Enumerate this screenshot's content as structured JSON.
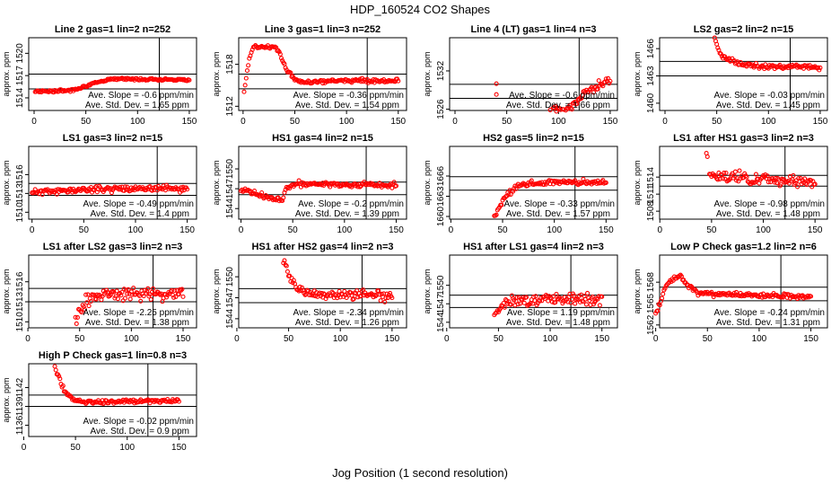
{
  "page": {
    "title": "HDP_160524  CO2 Shapes",
    "xlabel": "Jog Position (1 second resolution)",
    "ylabel": "approx. ppm",
    "point_color": "#ff0000"
  },
  "chart_data": [
    {
      "type": "scatter",
      "title": "Line 2 gas=1 lin=2 n=252",
      "xlim": [
        0,
        150
      ],
      "xticks": [
        0,
        50,
        100,
        150
      ],
      "ylim": [
        1512.3,
        1522.1
      ],
      "yticks": [
        1514,
        1517,
        1520
      ],
      "hlines": [
        1517.2,
        1515.2
      ],
      "vline": 121,
      "slope": "Ave. Slope = -0.6 ppm/min",
      "std": "Ave. Std. Dev. = 1.65 ppm",
      "start": 0,
      "gen": [
        1,
        1,
        [
          [
            0,
            1514.9
          ],
          [
            10,
            1514.9
          ],
          [
            20,
            1514.9
          ],
          [
            35,
            1515.0
          ],
          [
            45,
            1515.4
          ],
          [
            60,
            1516.0
          ],
          [
            75,
            1516.6
          ],
          [
            100,
            1516.5
          ],
          [
            125,
            1516.5
          ],
          [
            150,
            1516.4
          ]
        ],
        0.12
      ]
    },
    {
      "type": "scatter",
      "title": "Line 3 gas=1 lin=3 n=252",
      "xlim": [
        0,
        150
      ],
      "xticks": [
        0,
        50,
        100,
        150
      ],
      "ylim": [
        1511.4,
        1521.8
      ],
      "yticks": [
        1512,
        1518
      ],
      "hlines": [
        1516.6,
        1514.5
      ],
      "vline": 120,
      "slope": "Ave. Slope = -0.36 ppm/min",
      "std": "Ave. Std. Dev. = 1.54 ppm",
      "start": 1,
      "gen": [
        1,
        1,
        [
          [
            1,
            1514
          ],
          [
            3,
            1516
          ],
          [
            6,
            1519
          ],
          [
            10,
            1520.4
          ],
          [
            30,
            1520.5
          ],
          [
            36,
            1519.3
          ],
          [
            42,
            1517.2
          ],
          [
            50,
            1515.9
          ],
          [
            60,
            1515.4
          ],
          [
            80,
            1515.5
          ],
          [
            110,
            1515.7
          ],
          [
            150,
            1515.6
          ]
        ],
        0.2
      ]
    },
    {
      "type": "scatter",
      "title": "Line 4 (LT) gas=1 lin=4 n=3",
      "xlim": [
        0,
        150
      ],
      "xticks": [
        0,
        50,
        100,
        150
      ],
      "ylim": [
        1525.8,
        1537.2
      ],
      "yticks": [
        1526,
        1532
      ],
      "hlines": [
        1529.9,
        1527.7
      ],
      "vline": 120,
      "slope": "Ave. Slope = -0.6 ppm/min",
      "std": "Ave. Std. Dev. = 1.66 ppm",
      "start": 0,
      "pts": [
        [
          40,
          1530.0
        ],
        [
          40,
          1528.3
        ]
      ],
      "gen": [
        92,
        1,
        [
          [
            92,
            1525.8
          ],
          [
            108,
            1526.0
          ],
          [
            120,
            1527.7
          ],
          [
            130,
            1529.0
          ],
          [
            140,
            1529.8
          ],
          [
            150,
            1530.8
          ]
        ],
        0.55
      ]
    },
    {
      "type": "scatter",
      "title": "LS2 gas=2 lin=2 n=15",
      "xlim": [
        0,
        150
      ],
      "xticks": [
        0,
        50,
        100,
        150
      ],
      "ylim": [
        1459.2,
        1467.2
      ],
      "yticks": [
        1460,
        1463,
        1466
      ],
      "hlines": [
        1464.6,
        1463.0
      ],
      "vline": 121,
      "slope": "Ave. Slope = -0.03 ppm/min",
      "std": "Ave. Std. Dev. = 1.45 ppm",
      "start": 0,
      "gen": [
        48,
        1,
        [
          [
            48,
            1467.2
          ],
          [
            50,
            1466.4
          ],
          [
            55,
            1465.2
          ],
          [
            62,
            1464.7
          ],
          [
            75,
            1464.3
          ],
          [
            100,
            1464.0
          ],
          [
            125,
            1464.0
          ],
          [
            150,
            1463.9
          ]
        ],
        0.2
      ]
    },
    {
      "type": "scatter",
      "title": "LS1 gas=3 lin=2 n=15",
      "xlim": [
        0,
        150
      ],
      "xticks": [
        0,
        50,
        100,
        150
      ],
      "ylim": [
        1508.9,
        1520.5
      ],
      "yticks": [
        1510,
        1513,
        1516
      ],
      "hlines": [
        1514.6,
        1512.7
      ],
      "vline": 121,
      "slope": "Ave. Slope = -0.49 ppm/min",
      "std": "Ave. Std. Dev. = 1.4 ppm",
      "start": 2,
      "gen": [
        0,
        1,
        [
          [
            0,
            1513.2
          ],
          [
            30,
            1513.4
          ],
          [
            60,
            1513.7
          ],
          [
            100,
            1513.8
          ],
          [
            150,
            1513.7
          ]
        ],
        0.35
      ]
    },
    {
      "type": "scatter",
      "title": "HS1 gas=4 lin=2 n=15",
      "xlim": [
        0,
        150
      ],
      "xticks": [
        0,
        50,
        100,
        150
      ],
      "ylim": [
        1542.4,
        1553.4
      ],
      "yticks": [
        1544,
        1547,
        1550
      ],
      "hlines": [
        1548.0,
        1546.1
      ],
      "vline": 121,
      "slope": "Ave. Slope = -0.2 ppm/min",
      "std": "Ave. Std. Dev. = 1.39 ppm",
      "start": 3,
      "gen": [
        0,
        1,
        [
          [
            0,
            1546.8
          ],
          [
            20,
            1546.0
          ],
          [
            40,
            1545.2
          ],
          [
            43,
            1547.0
          ],
          [
            55,
            1547.8
          ],
          [
            100,
            1547.6
          ],
          [
            150,
            1547.5
          ]
        ],
        0.3
      ]
    },
    {
      "type": "scatter",
      "title": "HS2 gas=5 lin=2 n=15",
      "xlim": [
        0,
        150
      ],
      "xticks": [
        0,
        50,
        100,
        150
      ],
      "ylim": [
        1659.6,
        1670.4
      ],
      "yticks": [
        1660,
        1663,
        1666
      ],
      "hlines": [
        1665.9,
        1663.9
      ],
      "vline": 120,
      "slope": "Ave. Slope = -0.33 ppm/min",
      "std": "Ave. Std. Dev. = 1.57 ppm",
      "start": 4,
      "gen": [
        42,
        1,
        [
          [
            42,
            1659.9
          ],
          [
            48,
            1661.8
          ],
          [
            55,
            1663.4
          ],
          [
            65,
            1664.5
          ],
          [
            80,
            1665.0
          ],
          [
            100,
            1665.1
          ],
          [
            150,
            1665.0
          ]
        ],
        0.3
      ]
    },
    {
      "type": "scatter",
      "title": "LS1 after HS1 gas=3 lin=2 n=3",
      "xlim": [
        0,
        150
      ],
      "xticks": [
        0,
        50,
        100,
        150
      ],
      "ylim": [
        1506.6,
        1519.4
      ],
      "yticks": [
        1508,
        1511,
        1514
      ],
      "hlines": [
        1514.3,
        1512.4
      ],
      "vline": 121,
      "slope": "Ave. Slope = -0.98 ppm/min",
      "std": "Ave. Std. Dev. = 1.48 ppm",
      "start": 5,
      "pts": [
        [
          45,
          1518.2
        ],
        [
          46,
          1517.6
        ]
      ],
      "gen": [
        48,
        1,
        [
          [
            48,
            1514.2
          ],
          [
            80,
            1513.8
          ],
          [
            120,
            1513.4
          ],
          [
            150,
            1513.0
          ]
        ],
        0.75
      ]
    },
    {
      "type": "scatter",
      "title": "LS1 after LS2 gas=3 lin=2 n=3",
      "xlim": [
        0,
        150
      ],
      "xticks": [
        0,
        50,
        100,
        150
      ],
      "ylim": [
        1509.1,
        1520.0
      ],
      "yticks": [
        1510,
        1513,
        1516
      ],
      "hlines": [
        1515.0,
        1513.0
      ],
      "vline": 121,
      "slope": "Ave. Slope = -2.25 ppm/min",
      "std": "Ave. Std. Dev. = 1.38 ppm",
      "start": 6,
      "gen": [
        46,
        1,
        [
          [
            46,
            1510.5
          ],
          [
            55,
            1513.0
          ],
          [
            70,
            1514.0
          ],
          [
            100,
            1514.2
          ],
          [
            150,
            1514.3
          ]
        ],
        0.7
      ]
    },
    {
      "type": "scatter",
      "title": "HS1 after HS2 gas=4 lin=2 n=3",
      "xlim": [
        0,
        150
      ],
      "xticks": [
        0,
        50,
        100,
        150
      ],
      "ylim": [
        1542.7,
        1553.1
      ],
      "yticks": [
        1544,
        1547,
        1550
      ],
      "hlines": [
        1548.3,
        1546.3
      ],
      "vline": 121,
      "slope": "Ave. Slope = -2.34 ppm/min",
      "std": "Ave. Std. Dev. = 1.26 ppm",
      "start": 7,
      "gen": [
        45,
        1,
        [
          [
            45,
            1552.6
          ],
          [
            50,
            1550.0
          ],
          [
            60,
            1548.2
          ],
          [
            80,
            1547.4
          ],
          [
            110,
            1547.4
          ],
          [
            150,
            1547.3
          ]
        ],
        0.5
      ]
    },
    {
      "type": "scatter",
      "title": "HS1 after LS1 gas=4 lin=2 n=3",
      "xlim": [
        0,
        150
      ],
      "xticks": [
        0,
        50,
        100,
        150
      ],
      "ylim": [
        1543.1,
        1554.9
      ],
      "yticks": [
        1544,
        1547,
        1550
      ],
      "hlines": [
        1548.4,
        1546.4
      ],
      "vline": 120,
      "slope": "Ave. Slope = 1.19 ppm/min",
      "std": "Ave. Std. Dev. = 1.48 ppm",
      "start": 8,
      "gen": [
        46,
        1,
        [
          [
            46,
            1545.3
          ],
          [
            55,
            1547.2
          ],
          [
            80,
            1547.6
          ],
          [
            120,
            1547.9
          ],
          [
            150,
            1547.8
          ]
        ],
        0.7
      ]
    },
    {
      "type": "scatter",
      "title": "Low P Check gas=1.2 lin=2 n=6",
      "xlim": [
        0,
        150
      ],
      "xticks": [
        0,
        50,
        100,
        150
      ],
      "ylim": [
        1561.6,
        1571.8
      ],
      "yticks": [
        1562,
        1565,
        1568
      ],
      "hlines": [
        1567.3,
        1565.4
      ],
      "vline": 121,
      "slope": "Ave. Slope = -0.24 ppm/min",
      "std": "Ave. Std. Dev. = 1.31 ppm",
      "start": 9,
      "gen": [
        0,
        1,
        [
          [
            0,
            1563.4
          ],
          [
            5,
            1565.3
          ],
          [
            10,
            1567.6
          ],
          [
            15,
            1568.2
          ],
          [
            20,
            1568.8
          ],
          [
            25,
            1568.6
          ],
          [
            32,
            1567.6
          ],
          [
            40,
            1566.5
          ],
          [
            60,
            1566.3
          ],
          [
            100,
            1566.1
          ],
          [
            150,
            1565.9
          ]
        ],
        0.25
      ]
    },
    {
      "type": "scatter",
      "title": "High P Check gas=1 lin=0.8 n=3",
      "xlim": [
        0,
        150
      ],
      "xticks": [
        0,
        50,
        100,
        150
      ],
      "ylim": [
        1134.2,
        1145.8
      ],
      "yticks": [
        1136,
        1139,
        1142
      ],
      "hlines": [
        1140.8,
        1139.0
      ],
      "vline": 120,
      "slope": "Ave. Slope = -0.02 ppm/min",
      "std": "Ave. Std. Dev. = 0.9 ppm",
      "start": 10,
      "gen": [
        30,
        1,
        [
          [
            30,
            1145.2
          ],
          [
            34,
            1143.6
          ],
          [
            40,
            1141.3
          ],
          [
            48,
            1140.0
          ],
          [
            60,
            1139.7
          ],
          [
            100,
            1139.8
          ],
          [
            150,
            1139.9
          ]
        ],
        0.25
      ]
    }
  ]
}
